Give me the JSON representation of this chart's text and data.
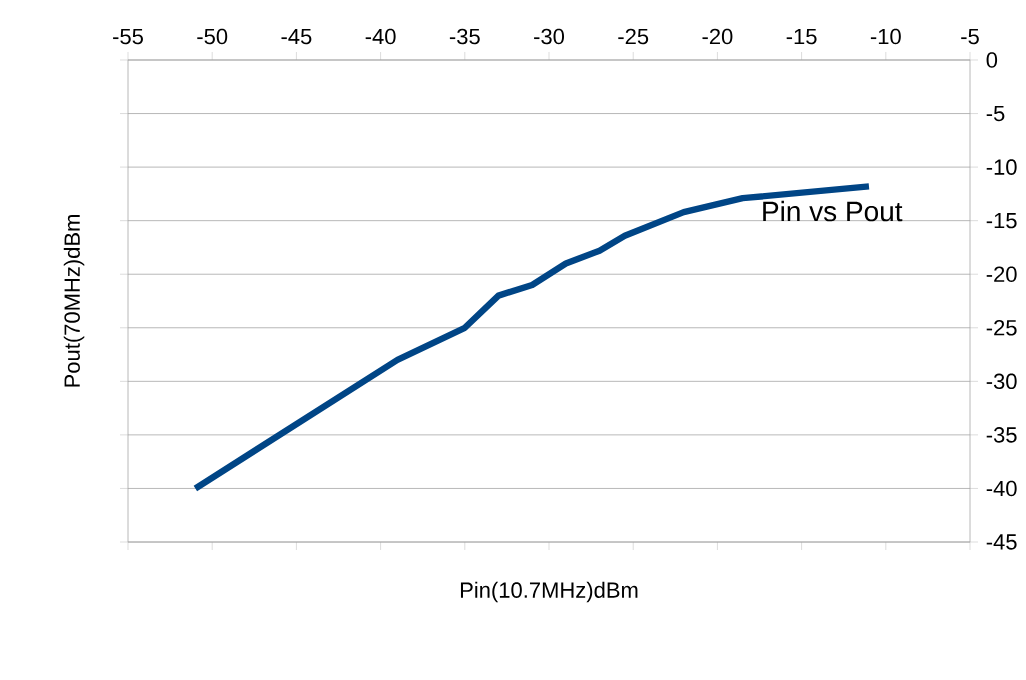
{
  "chart_data": {
    "type": "line",
    "xlabel": "Pin(10.7MHz)dBm",
    "ylabel": "Pout(70MHz)dBm",
    "xlim": [
      -55,
      -5
    ],
    "xticks": [
      -55,
      -50,
      -45,
      -40,
      -35,
      -30,
      -25,
      -20,
      -15,
      -10,
      -5
    ],
    "ylim": [
      -45,
      0
    ],
    "yticks": [
      -45,
      -40,
      -35,
      -30,
      -25,
      -20,
      -15,
      -10,
      -5,
      0
    ],
    "grid": "y",
    "legend": false,
    "marker": "none",
    "line_style": "solid",
    "series": [
      {
        "name": "Pin vs Pout",
        "color": "#004586",
        "x": [
          -51,
          -39,
          -35,
          -33,
          -31,
          -29,
          -27,
          -25.5,
          -22,
          -18.5,
          -11
        ],
        "values": [
          -40,
          -28,
          -25,
          -22,
          -21,
          -19,
          -17.8,
          -16.4,
          -14.2,
          -12.9,
          -11.8
        ]
      }
    ]
  }
}
